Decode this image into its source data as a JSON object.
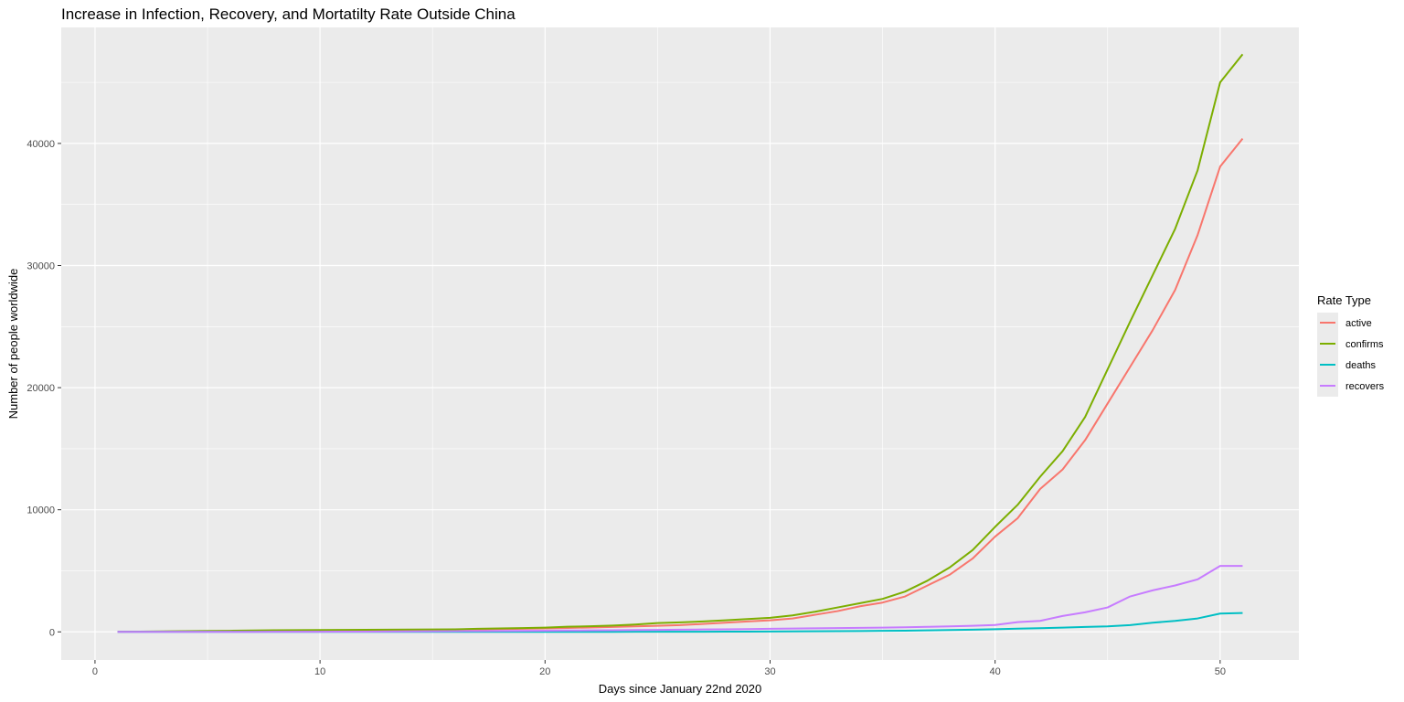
{
  "chart_data": {
    "type": "line",
    "title": "Increase in Infection, Recovery, and Mortatilty Rate Outside China",
    "xlabel": "Days since January 22nd 2020",
    "ylabel": "Number of people worldwide",
    "xlim": [
      -1.5,
      53.5
    ],
    "ylim": [
      -2300,
      49500
    ],
    "x_ticks": [
      0,
      10,
      20,
      30,
      40,
      50
    ],
    "x_tick_labels": [
      "0",
      "10",
      "20",
      "30",
      "40",
      "50"
    ],
    "y_ticks": [
      0,
      10000,
      20000,
      30000,
      40000
    ],
    "y_tick_labels": [
      "0",
      "10000",
      "20000",
      "30000",
      "40000"
    ],
    "grid": true,
    "legend": {
      "title": "Rate Type",
      "position": "right"
    },
    "x": [
      1,
      2,
      3,
      4,
      5,
      6,
      7,
      8,
      9,
      10,
      11,
      12,
      13,
      14,
      15,
      16,
      17,
      18,
      19,
      20,
      21,
      22,
      23,
      24,
      25,
      26,
      27,
      28,
      29,
      30,
      31,
      32,
      33,
      34,
      35,
      36,
      37,
      38,
      39,
      40,
      41,
      42,
      43,
      44,
      45,
      46,
      47,
      48,
      49,
      50,
      51
    ],
    "series": [
      {
        "name": "active",
        "color": "#F8766D",
        "values": [
          10,
          15,
          25,
          40,
          55,
          65,
          85,
          105,
          110,
          115,
          135,
          145,
          150,
          160,
          165,
          175,
          200,
          230,
          250,
          280,
          320,
          360,
          400,
          450,
          500,
          550,
          650,
          750,
          850,
          950,
          1100,
          1400,
          1700,
          2100,
          2400,
          2900,
          3800,
          4700,
          6000,
          7800,
          9300,
          11700,
          13300,
          15700,
          18700,
          21700,
          24700,
          28000,
          32500,
          38100,
          40400
        ]
      },
      {
        "name": "confirms",
        "color": "#7CAE00",
        "values": [
          15,
          25,
          40,
          60,
          75,
          90,
          110,
          130,
          140,
          150,
          160,
          170,
          180,
          190,
          200,
          210,
          250,
          280,
          310,
          350,
          420,
          460,
          520,
          600,
          720,
          780,
          850,
          950,
          1050,
          1150,
          1350,
          1650,
          2000,
          2350,
          2700,
          3300,
          4200,
          5300,
          6700,
          8600,
          10400,
          12700,
          14800,
          17600,
          21500,
          25400,
          29200,
          33000,
          37800,
          45000,
          47300
        ]
      },
      {
        "name": "deaths",
        "color": "#00BFC4",
        "values": [
          0,
          0,
          0,
          0,
          0,
          0,
          0,
          1,
          1,
          1,
          1,
          1,
          1,
          1,
          1,
          2,
          2,
          2,
          3,
          3,
          4,
          5,
          6,
          8,
          10,
          12,
          15,
          20,
          25,
          30,
          40,
          50,
          60,
          70,
          85,
          100,
          120,
          150,
          180,
          220,
          260,
          300,
          350,
          400,
          450,
          550,
          750,
          900,
          1100,
          1500,
          1550
        ]
      },
      {
        "name": "recovers",
        "color": "#C77CFF",
        "values": [
          0,
          0,
          0,
          1,
          2,
          3,
          5,
          8,
          10,
          15,
          20,
          25,
          30,
          40,
          50,
          60,
          70,
          80,
          90,
          100,
          110,
          120,
          135,
          150,
          165,
          180,
          195,
          210,
          230,
          250,
          270,
          290,
          310,
          330,
          350,
          380,
          410,
          450,
          500,
          560,
          800,
          900,
          1300,
          1600,
          2000,
          2900,
          3400,
          3800,
          4300,
          5400,
          5400
        ]
      }
    ]
  }
}
